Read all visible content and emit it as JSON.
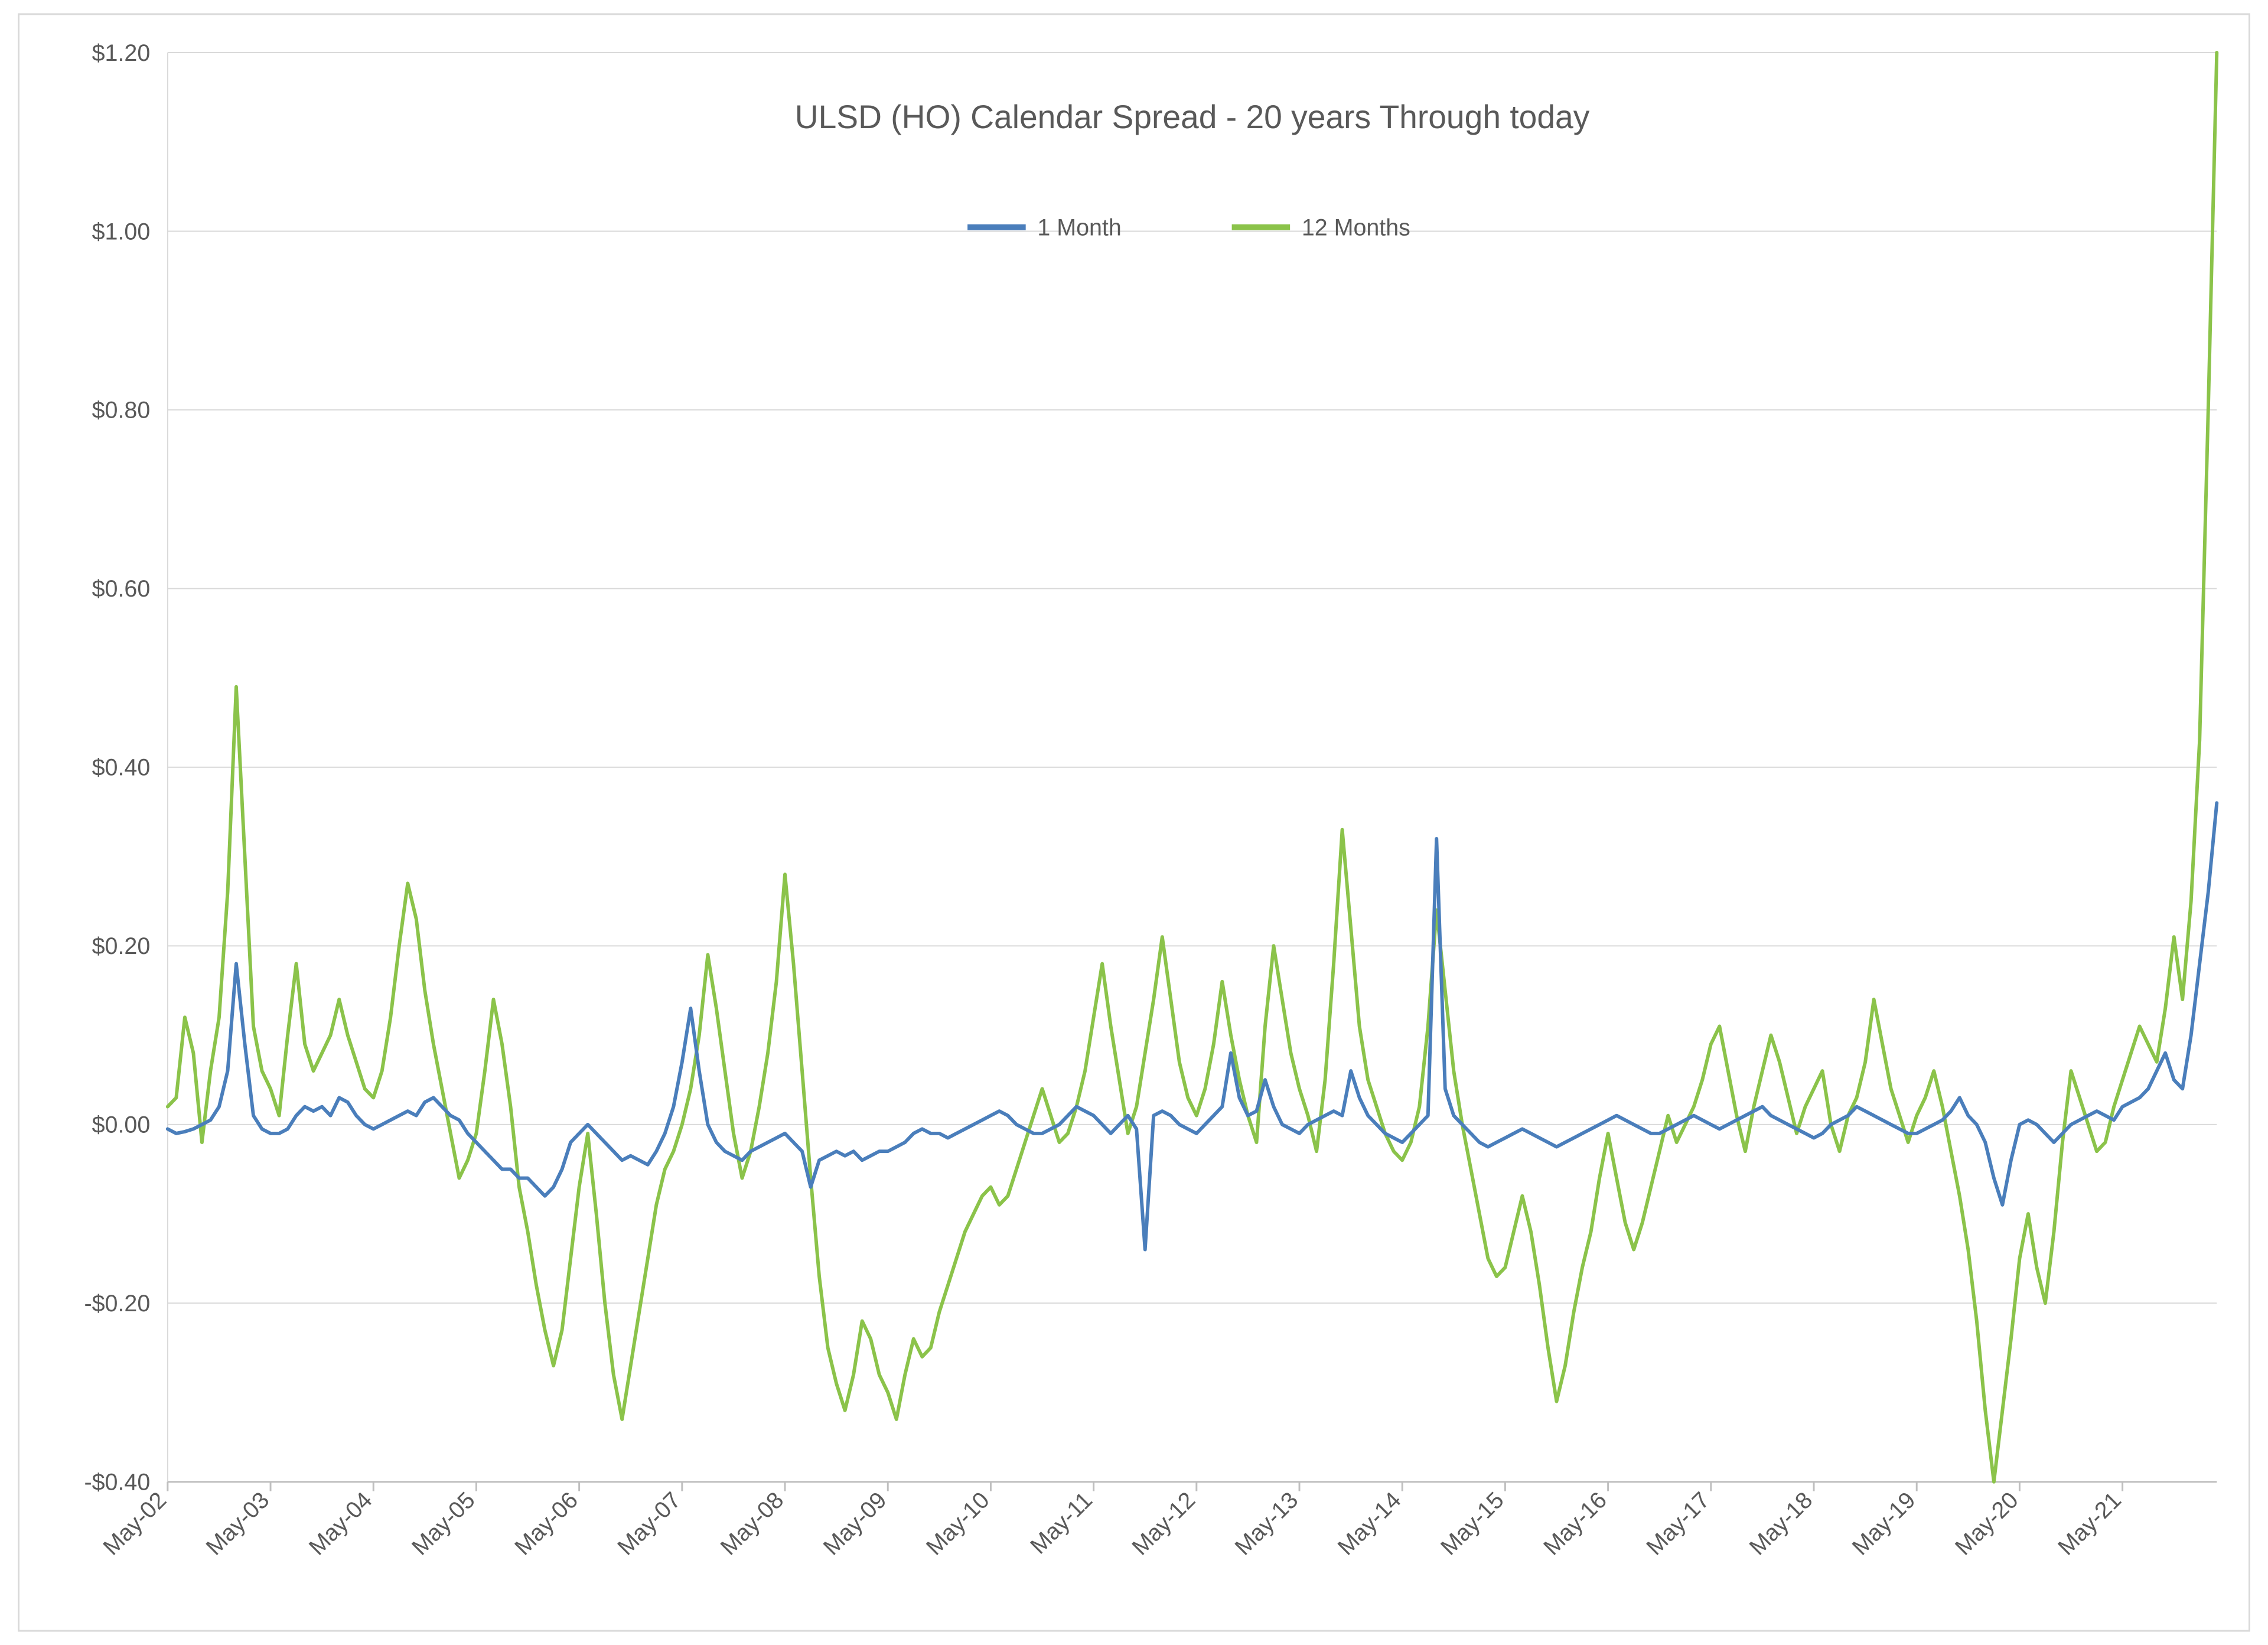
{
  "chart": {
    "type": "line",
    "title": "ULSD (HO) Calendar Spread - 20 years Through today",
    "title_fontsize": 56,
    "title_color": "#595959",
    "background_color": "#ffffff",
    "plot_border_color": "#d9d9d9",
    "grid_color": "#d9d9d9",
    "axis_label_color": "#595959",
    "axis_label_fontsize": 40,
    "line_width": 6,
    "y": {
      "min": -0.4,
      "max": 1.2,
      "tick_step": 0.2,
      "tick_format_prefix": "$",
      "ticks": [
        -0.4,
        -0.2,
        0.0,
        0.2,
        0.4,
        0.6,
        0.8,
        1.0,
        1.2
      ]
    },
    "x": {
      "labels": [
        "May-02",
        "May-03",
        "May-04",
        "May-05",
        "May-06",
        "May-07",
        "May-08",
        "May-09",
        "May-10",
        "May-11",
        "May-12",
        "May-13",
        "May-14",
        "May-15",
        "May-16",
        "May-17",
        "May-18",
        "May-19",
        "May-20",
        "May-21"
      ],
      "points_per_label": 12,
      "total_points": 240,
      "label_rotation_deg": -45
    },
    "legend": {
      "position": "top-center",
      "items": [
        {
          "key": "s1",
          "label": "1 Month",
          "color": "#4a7ebb"
        },
        {
          "key": "s2",
          "label": "12 Months",
          "color": "#8bc34a"
        }
      ]
    },
    "series": {
      "s1": {
        "label": "1 Month",
        "color": "#4a7ebb",
        "values": [
          -0.005,
          -0.01,
          -0.008,
          -0.005,
          0.0,
          0.005,
          0.02,
          0.06,
          0.18,
          0.09,
          0.01,
          -0.005,
          -0.01,
          -0.01,
          -0.005,
          0.01,
          0.02,
          0.015,
          0.02,
          0.01,
          0.03,
          0.025,
          0.01,
          0.0,
          -0.005,
          0.0,
          0.005,
          0.01,
          0.015,
          0.01,
          0.025,
          0.03,
          0.02,
          0.01,
          0.005,
          -0.01,
          -0.02,
          -0.03,
          -0.04,
          -0.05,
          -0.05,
          -0.06,
          -0.06,
          -0.07,
          -0.08,
          -0.07,
          -0.05,
          -0.02,
          -0.01,
          0.0,
          -0.01,
          -0.02,
          -0.03,
          -0.04,
          -0.035,
          -0.04,
          -0.045,
          -0.03,
          -0.01,
          0.02,
          0.07,
          0.13,
          0.06,
          0.0,
          -0.02,
          -0.03,
          -0.035,
          -0.04,
          -0.03,
          -0.025,
          -0.02,
          -0.015,
          -0.01,
          -0.02,
          -0.03,
          -0.07,
          -0.04,
          -0.035,
          -0.03,
          -0.035,
          -0.03,
          -0.04,
          -0.035,
          -0.03,
          -0.03,
          -0.025,
          -0.02,
          -0.01,
          -0.005,
          -0.01,
          -0.01,
          -0.015,
          -0.01,
          -0.005,
          0.0,
          0.005,
          0.01,
          0.015,
          0.01,
          0.0,
          -0.005,
          -0.01,
          -0.01,
          -0.005,
          0.0,
          0.01,
          0.02,
          0.015,
          0.01,
          0.0,
          -0.01,
          0.0,
          0.01,
          -0.005,
          -0.14,
          0.01,
          0.015,
          0.01,
          0.0,
          -0.005,
          -0.01,
          0.0,
          0.01,
          0.02,
          0.08,
          0.03,
          0.01,
          0.015,
          0.05,
          0.02,
          0.0,
          -0.005,
          -0.01,
          0.0,
          0.005,
          0.01,
          0.015,
          0.01,
          0.06,
          0.03,
          0.01,
          0.0,
          -0.01,
          -0.015,
          -0.02,
          -0.01,
          0.0,
          0.01,
          0.32,
          0.04,
          0.01,
          0.0,
          -0.01,
          -0.02,
          -0.025,
          -0.02,
          -0.015,
          -0.01,
          -0.005,
          -0.01,
          -0.015,
          -0.02,
          -0.025,
          -0.02,
          -0.015,
          -0.01,
          -0.005,
          0.0,
          0.005,
          0.01,
          0.005,
          0.0,
          -0.005,
          -0.01,
          -0.01,
          -0.005,
          0.0,
          0.005,
          0.01,
          0.005,
          0.0,
          -0.005,
          0.0,
          0.005,
          0.01,
          0.015,
          0.02,
          0.01,
          0.005,
          0.0,
          -0.005,
          -0.01,
          -0.015,
          -0.01,
          0.0,
          0.005,
          0.01,
          0.02,
          0.015,
          0.01,
          0.005,
          0.0,
          -0.005,
          -0.01,
          -0.01,
          -0.005,
          0.0,
          0.005,
          0.015,
          0.03,
          0.01,
          0.0,
          -0.02,
          -0.06,
          -0.09,
          -0.04,
          0.0,
          0.005,
          0.0,
          -0.01,
          -0.02,
          -0.01,
          0.0,
          0.005,
          0.01,
          0.015,
          0.01,
          0.005,
          0.02,
          0.025,
          0.03,
          0.04,
          0.06,
          0.08,
          0.05,
          0.04,
          0.1,
          0.18,
          0.26,
          0.36
        ]
      },
      "s2": {
        "label": "12 Months",
        "color": "#8bc34a",
        "values": [
          0.02,
          0.03,
          0.12,
          0.08,
          -0.02,
          0.06,
          0.12,
          0.26,
          0.49,
          0.3,
          0.11,
          0.06,
          0.04,
          0.01,
          0.1,
          0.18,
          0.09,
          0.06,
          0.08,
          0.1,
          0.14,
          0.1,
          0.07,
          0.04,
          0.03,
          0.06,
          0.12,
          0.2,
          0.27,
          0.23,
          0.15,
          0.09,
          0.04,
          -0.01,
          -0.06,
          -0.04,
          -0.01,
          0.06,
          0.14,
          0.09,
          0.02,
          -0.07,
          -0.12,
          -0.18,
          -0.23,
          -0.27,
          -0.23,
          -0.15,
          -0.07,
          -0.01,
          -0.1,
          -0.2,
          -0.28,
          -0.33,
          -0.27,
          -0.21,
          -0.15,
          -0.09,
          -0.05,
          -0.03,
          0.0,
          0.04,
          0.1,
          0.19,
          0.13,
          0.06,
          -0.01,
          -0.06,
          -0.03,
          0.02,
          0.08,
          0.16,
          0.28,
          0.18,
          0.06,
          -0.06,
          -0.17,
          -0.25,
          -0.29,
          -0.32,
          -0.28,
          -0.22,
          -0.24,
          -0.28,
          -0.3,
          -0.33,
          -0.28,
          -0.24,
          -0.26,
          -0.25,
          -0.21,
          -0.18,
          -0.15,
          -0.12,
          -0.1,
          -0.08,
          -0.07,
          -0.09,
          -0.08,
          -0.05,
          -0.02,
          0.01,
          0.04,
          0.01,
          -0.02,
          -0.01,
          0.02,
          0.06,
          0.12,
          0.18,
          0.11,
          0.05,
          -0.01,
          0.02,
          0.08,
          0.14,
          0.21,
          0.14,
          0.07,
          0.03,
          0.01,
          0.04,
          0.09,
          0.16,
          0.1,
          0.05,
          0.01,
          -0.02,
          0.11,
          0.2,
          0.14,
          0.08,
          0.04,
          0.01,
          -0.03,
          0.05,
          0.18,
          0.33,
          0.22,
          0.11,
          0.05,
          0.02,
          -0.01,
          -0.03,
          -0.04,
          -0.02,
          0.02,
          0.11,
          0.24,
          0.15,
          0.06,
          0.0,
          -0.05,
          -0.1,
          -0.15,
          -0.17,
          -0.16,
          -0.12,
          -0.08,
          -0.12,
          -0.18,
          -0.25,
          -0.31,
          -0.27,
          -0.21,
          -0.16,
          -0.12,
          -0.06,
          -0.01,
          -0.06,
          -0.11,
          -0.14,
          -0.11,
          -0.07,
          -0.03,
          0.01,
          -0.02,
          0.0,
          0.02,
          0.05,
          0.09,
          0.11,
          0.06,
          0.01,
          -0.03,
          0.02,
          0.06,
          0.1,
          0.07,
          0.03,
          -0.01,
          0.02,
          0.04,
          0.06,
          0.0,
          -0.03,
          0.01,
          0.03,
          0.07,
          0.14,
          0.09,
          0.04,
          0.01,
          -0.02,
          0.01,
          0.03,
          0.06,
          0.02,
          -0.03,
          -0.08,
          -0.14,
          -0.22,
          -0.32,
          -0.4,
          -0.32,
          -0.24,
          -0.15,
          -0.1,
          -0.16,
          -0.2,
          -0.12,
          -0.02,
          0.06,
          0.03,
          0.0,
          -0.03,
          -0.02,
          0.02,
          0.05,
          0.08,
          0.11,
          0.09,
          0.07,
          0.13,
          0.21,
          0.14,
          0.25,
          0.43,
          0.8,
          1.2
        ]
      }
    }
  }
}
